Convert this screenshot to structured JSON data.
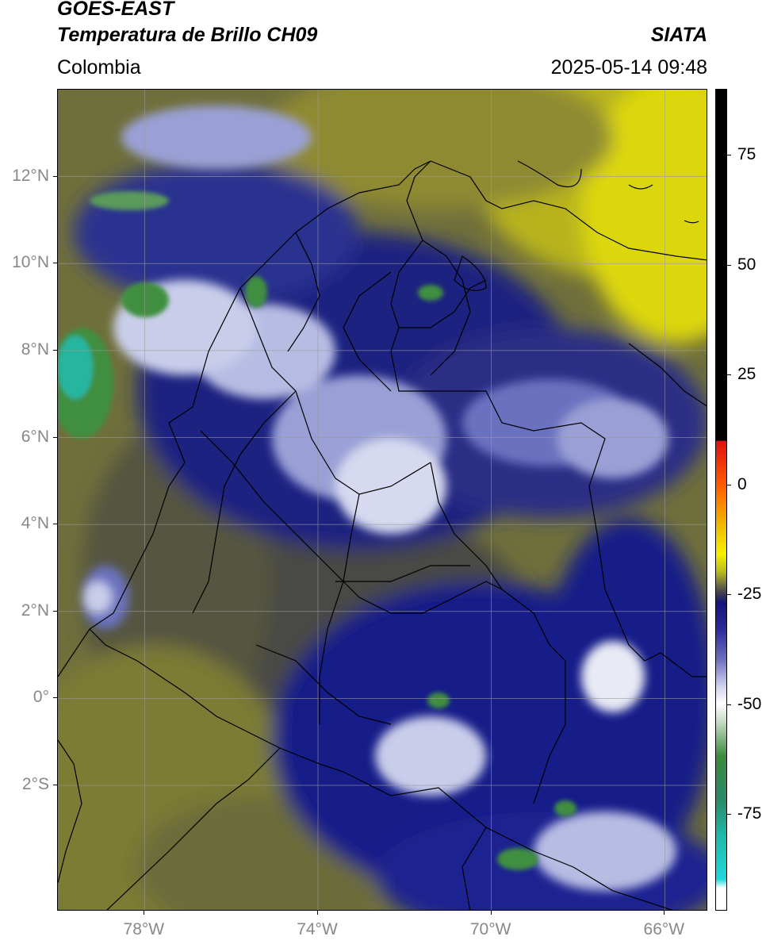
{
  "header": {
    "satellite": "GOES-EAST",
    "product": "Temperatura de Brillo CH09",
    "region": "Colombia",
    "source": "SIATA",
    "datetime": "2025-05-14 09:48"
  },
  "map": {
    "lat_labels": [
      "12°N",
      "10°N",
      "8°N",
      "6°N",
      "4°N",
      "2°N",
      "0°",
      "2°S"
    ],
    "lon_labels": [
      "78°W",
      "74°W",
      "70°W",
      "66°W"
    ],
    "lat_range": [
      -4.9,
      14.0
    ],
    "lon_range": [
      -80.0,
      -65.0
    ],
    "colors": {
      "dry_olive": "#7f7f32",
      "dark_olive": "#4f4f3c",
      "navy": "#121a80",
      "mid_blue": "#4f57b0",
      "cloud_white": "#e8eaf5",
      "cold_green": "#3f8f3f",
      "coldest_teal": "#27b6a0",
      "yellow": "#e6e100"
    }
  },
  "colorbar": {
    "labels": [
      "75",
      "50",
      "25",
      "0",
      "-25",
      "-50",
      "-75"
    ],
    "label_values": [
      75,
      50,
      25,
      0,
      -25,
      -50,
      -75
    ],
    "range": [
      -97,
      90
    ]
  }
}
